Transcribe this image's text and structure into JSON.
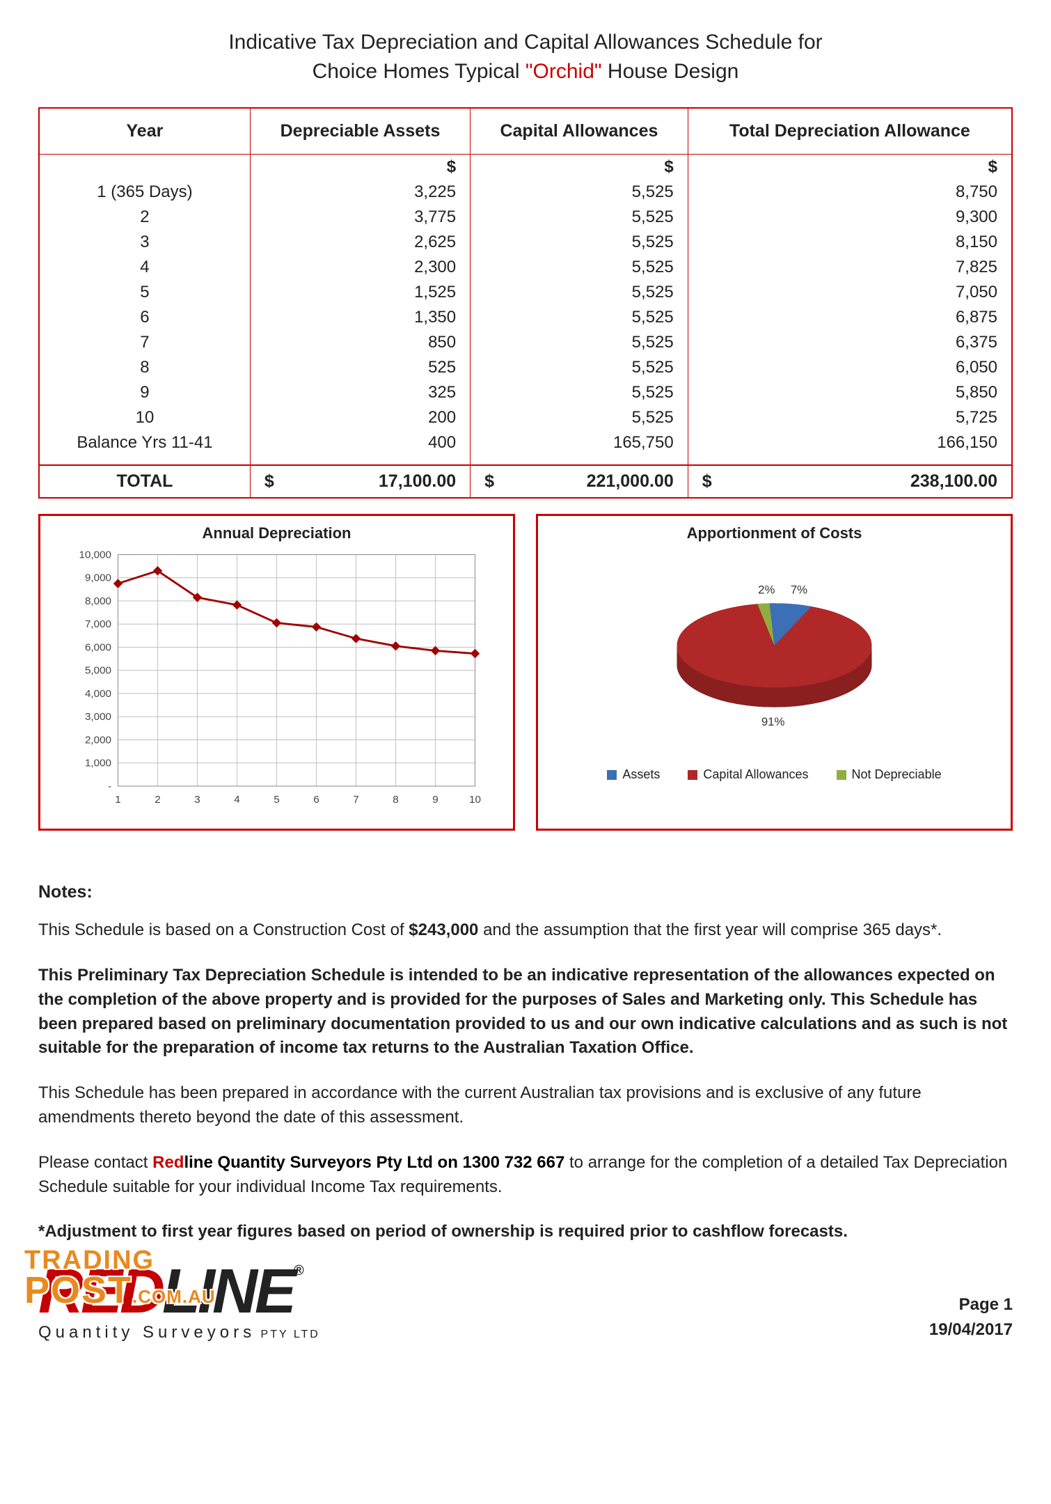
{
  "title": {
    "line1": "Indicative Tax Depreciation and Capital Allowances Schedule for",
    "line2a": "Choice Homes Typical ",
    "line2_accent": "\"Orchid\"",
    "line2b": " House Design",
    "accent_color": "#cc0000",
    "text_color": "#222222",
    "fontsize": 30
  },
  "table": {
    "border_color": "#cc0000",
    "columns": [
      "Year",
      "Depreciable Assets",
      "Capital Allowances",
      "Total Depreciation Allowance"
    ],
    "unit": "$",
    "rows": [
      {
        "year": "1 (365 Days)",
        "assets": "3,225",
        "cap": "5,525",
        "total": "8,750"
      },
      {
        "year": "2",
        "assets": "3,775",
        "cap": "5,525",
        "total": "9,300"
      },
      {
        "year": "3",
        "assets": "2,625",
        "cap": "5,525",
        "total": "8,150"
      },
      {
        "year": "4",
        "assets": "2,300",
        "cap": "5,525",
        "total": "7,825"
      },
      {
        "year": "5",
        "assets": "1,525",
        "cap": "5,525",
        "total": "7,050"
      },
      {
        "year": "6",
        "assets": "1,350",
        "cap": "5,525",
        "total": "6,875"
      },
      {
        "year": "7",
        "assets": "850",
        "cap": "5,525",
        "total": "6,375"
      },
      {
        "year": "8",
        "assets": "525",
        "cap": "5,525",
        "total": "6,050"
      },
      {
        "year": "9",
        "assets": "325",
        "cap": "5,525",
        "total": "5,850"
      },
      {
        "year": "10",
        "assets": "200",
        "cap": "5,525",
        "total": "5,725"
      },
      {
        "year": "Balance Yrs 11-41",
        "assets": "400",
        "cap": "165,750",
        "total": "166,150"
      }
    ],
    "total_label": "TOTAL",
    "totals": {
      "assets": "17,100.00",
      "cap": "221,000.00",
      "total": "238,100.00"
    }
  },
  "line_chart": {
    "title": "Annual Depreciation",
    "type": "line",
    "x": [
      1,
      2,
      3,
      4,
      5,
      6,
      7,
      8,
      9,
      10
    ],
    "y": [
      8750,
      9300,
      8150,
      7825,
      7050,
      6875,
      6375,
      6050,
      5850,
      5725
    ],
    "ylim": [
      0,
      10000
    ],
    "ytick_step": 1000,
    "ytick_labels": [
      "-",
      "1,000",
      "2,000",
      "3,000",
      "4,000",
      "5,000",
      "6,000",
      "7,000",
      "8,000",
      "9,000",
      "10,000"
    ],
    "line_color": "#a00000",
    "marker_color": "#a00000",
    "marker_size": 5,
    "line_width": 3,
    "grid_color": "#bfbfbf",
    "axis_color": "#888888",
    "label_fontsize": 16,
    "title_fontsize": 22,
    "background_color": "#ffffff"
  },
  "pie_chart": {
    "title": "Apportionment of Costs",
    "type": "pie3d",
    "slices": [
      {
        "label": "Assets",
        "pct": 7,
        "pct_label": "7%",
        "color": "#3b6fb6"
      },
      {
        "label": "Capital Allowances",
        "pct": 91,
        "pct_label": "91%",
        "color": "#b02828"
      },
      {
        "label": "Not Depreciable",
        "pct": 2,
        "pct_label": "2%",
        "color": "#8fae3f"
      }
    ],
    "label_fontsize": 18,
    "title_fontsize": 22,
    "background_color": "#ffffff"
  },
  "notes": {
    "heading": "Notes:",
    "p1a": "This Schedule is based on a Construction Cost of ",
    "p1b": "$243,000",
    "p1c": " and the assumption that the first year will comprise 365 days*.",
    "p2": "This Preliminary Tax Depreciation Schedule is intended to be an indicative representation of the allowances expected on the completion of the above property and is provided for the purposes of Sales and Marketing only.  This Schedule has been prepared based on preliminary documentation provided to us and our own indicative calculations and as such is not suitable for the preparation of income tax returns to the Australian Taxation Office.",
    "p3": "This Schedule has been prepared in accordance with the current Australian tax provisions and is exclusive of any future amendments thereto beyond the date of this assessment.",
    "p4a": "Please contact ",
    "p4_red": "Red",
    "p4_line": "line Quantity Surveyors Pty Ltd on 1300 732 667",
    "p4b": " to arrange for the completion of a detailed Tax Depreciation Schedule suitable for your individual Income Tax requirements.",
    "p5": "*Adjustment to first year figures based on period of ownership is required prior to cashflow forecasts."
  },
  "footer": {
    "tradingpost": {
      "line1": "TRADING",
      "line2": "POST",
      "suffix": ".COM.AU",
      "color": "#e88a1f"
    },
    "logo": {
      "red": "RED",
      "line": "LINE",
      "reg": "®",
      "sub": "Quantity Surveyors",
      "pty": " PTY LTD"
    },
    "page": "Page 1",
    "date": "19/04/2017"
  }
}
